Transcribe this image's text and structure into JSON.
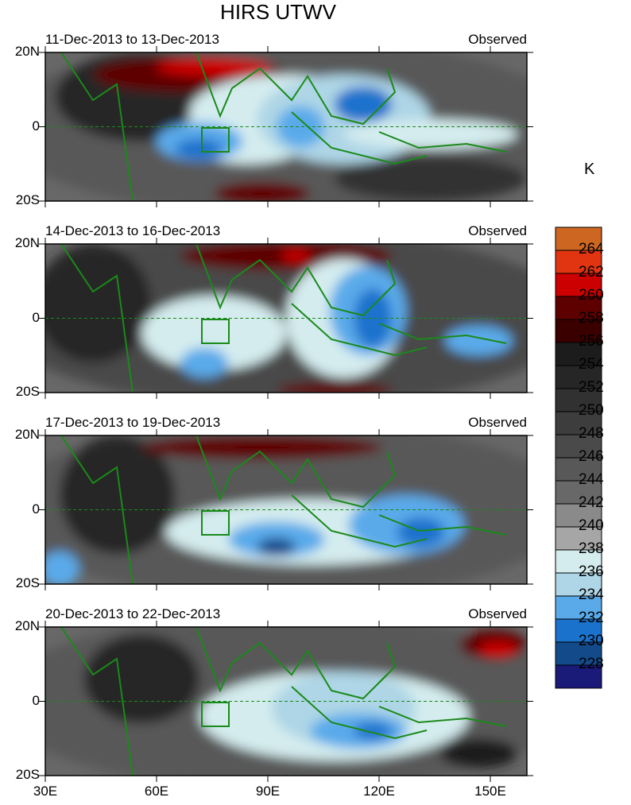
{
  "title": "HIRS UTWV",
  "units": "K",
  "panels": [
    {
      "date_range": "11-Dec-2013 to 13-Dec-2013",
      "label": "Observed"
    },
    {
      "date_range": "14-Dec-2013 to 16-Dec-2013",
      "label": "Observed"
    },
    {
      "date_range": "17-Dec-2013 to 19-Dec-2013",
      "label": "Observed"
    },
    {
      "date_range": "20-Dec-2013 to 22-Dec-2013",
      "label": "Observed"
    }
  ],
  "y_ticks": [
    "20N",
    "0",
    "20S"
  ],
  "x_ticks": [
    "30E",
    "60E",
    "90E",
    "120E",
    "150E"
  ],
  "colorbar": {
    "labels": [
      "264",
      "262",
      "260",
      "258",
      "256",
      "254",
      "252",
      "250",
      "248",
      "246",
      "244",
      "242",
      "240",
      "238",
      "236",
      "234",
      "232",
      "230",
      "228"
    ],
    "colors": [
      "#cc6620",
      "#e03510",
      "#cc0000",
      "#5e0000",
      "#3a0000",
      "#1c1c1c",
      "#262626",
      "#313131",
      "#3d3d3d",
      "#4a4a4a",
      "#585858",
      "#686868",
      "#8a8a8a",
      "#a6a6a6",
      "#d4ecee",
      "#aed6e6",
      "#5aaaea",
      "#1a72cc",
      "#124a8a",
      "#1a1a78"
    ]
  }
}
